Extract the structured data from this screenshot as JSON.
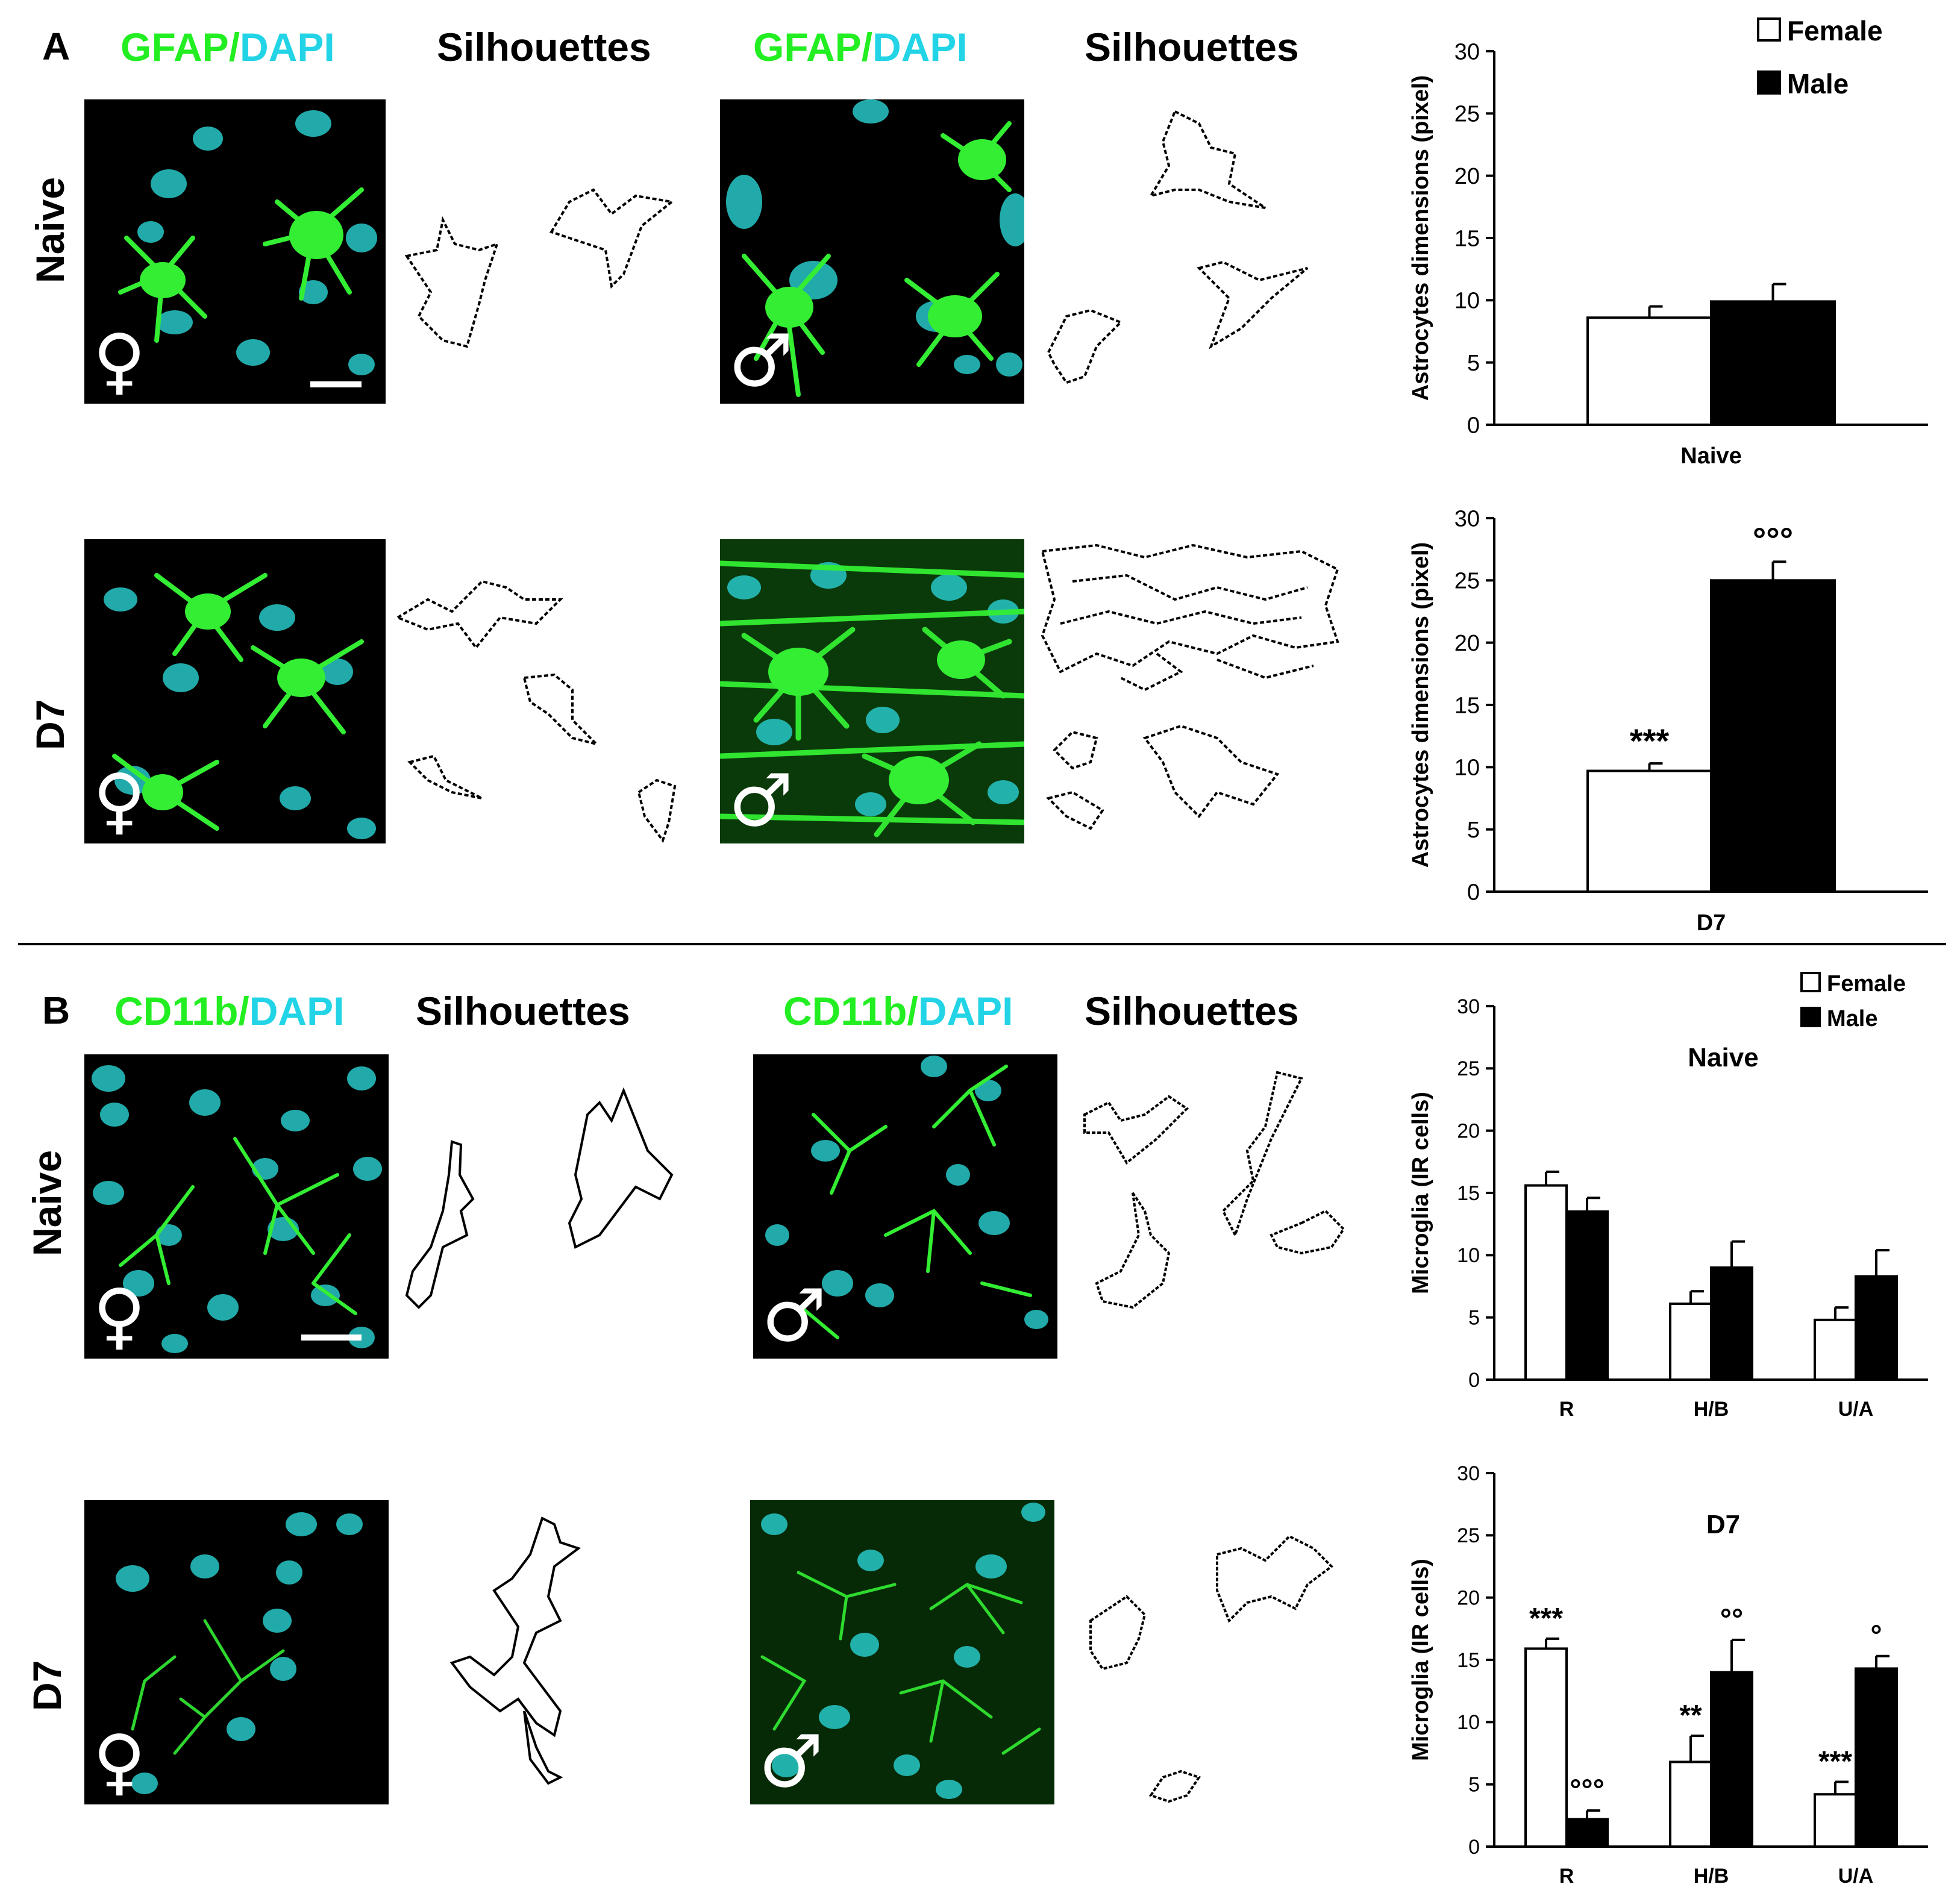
{
  "panels": {
    "A": {
      "letter": "A",
      "headers": [
        {
          "stain": "GFAP",
          "sep": "/",
          "dapi": "DAPI"
        },
        {
          "silhouettes": "Silhouettes"
        },
        {
          "stain": "GFAP",
          "sep": "/",
          "dapi": "DAPI"
        },
        {
          "silhouettes": "Silhouettes"
        }
      ],
      "rows": [
        "Naive",
        "D7"
      ]
    },
    "B": {
      "letter": "B",
      "headers": [
        {
          "stain": "CD11b",
          "sep": "/",
          "dapi": "DAPI"
        },
        {
          "silhouettes": "Silhouettes"
        },
        {
          "stain": "CD11b",
          "sep": "/",
          "dapi": "DAPI"
        },
        {
          "silhouettes": "Silhouettes"
        }
      ],
      "rows": [
        "Naive",
        "D7"
      ]
    }
  },
  "symbols": {
    "female": "♀",
    "male": "♂"
  },
  "colors": {
    "gfap": "#22ee22",
    "dapi": "#22d4e6",
    "female_bar": "#ffffff",
    "male_bar": "#000000"
  },
  "chart_data": [
    {
      "type": "bar",
      "categories": [
        "Naive"
      ],
      "series": [
        {
          "name": "Female",
          "values": [
            8.6
          ],
          "errors": [
            0.9
          ],
          "annotations": [
            ""
          ]
        },
        {
          "name": "Male",
          "values": [
            9.9
          ],
          "errors": [
            1.4
          ],
          "annotations": [
            ""
          ]
        }
      ],
      "ylabel": "Astrocytes dimensions  (pixel)",
      "ylim": [
        0,
        30
      ],
      "yticks": [
        0,
        5,
        10,
        15,
        20,
        25,
        30
      ],
      "legend": "top-right",
      "inner_title": ""
    },
    {
      "type": "bar",
      "categories": [
        "D7"
      ],
      "series": [
        {
          "name": "",
          "values": [
            9.7
          ],
          "errors": [
            0.6
          ],
          "annotations": [
            "***"
          ]
        },
        {
          "name": "",
          "values": [
            25.0
          ],
          "errors": [
            1.5
          ],
          "annotations": [
            "ooo"
          ]
        }
      ],
      "ylabel": "Astrocytes dimensions  (pixel)",
      "ylim": [
        0,
        30
      ],
      "yticks": [
        0,
        5,
        10,
        15,
        20,
        25,
        30
      ],
      "legend": "",
      "inner_title": ""
    },
    {
      "type": "bar",
      "categories": [
        "R",
        "H/B",
        "U/A"
      ],
      "series": [
        {
          "name": "Female",
          "values": [
            15.6,
            6.1,
            4.8
          ],
          "errors": [
            1.1,
            1.0,
            1.0
          ],
          "annotations": [
            "",
            "",
            ""
          ]
        },
        {
          "name": "Male",
          "values": [
            13.5,
            9.0,
            8.3
          ],
          "errors": [
            1.1,
            2.1,
            2.1
          ],
          "annotations": [
            "",
            "",
            ""
          ]
        }
      ],
      "ylabel": "Microglia  (IR cells)",
      "ylim": [
        0,
        30
      ],
      "yticks": [
        0,
        5,
        10,
        15,
        20,
        25,
        30
      ],
      "legend": "top-right",
      "inner_title": "Naive"
    },
    {
      "type": "bar",
      "categories": [
        "R",
        "H/B",
        "U/A"
      ],
      "series": [
        {
          "name": "",
          "values": [
            15.9,
            6.8,
            4.2
          ],
          "errors": [
            0.8,
            2.1,
            1.0
          ],
          "annotations": [
            "***",
            "**",
            "***"
          ]
        },
        {
          "name": "",
          "values": [
            2.2,
            14.0,
            14.3
          ],
          "errors": [
            0.7,
            2.6,
            1.0
          ],
          "annotations": [
            "ooo",
            "oo",
            "o"
          ]
        }
      ],
      "ylabel": "Microglia  (IR cells)",
      "ylim": [
        0,
        30
      ],
      "yticks": [
        0,
        5,
        10,
        15,
        20,
        25,
        30
      ],
      "legend": "",
      "inner_title": "D7"
    }
  ]
}
